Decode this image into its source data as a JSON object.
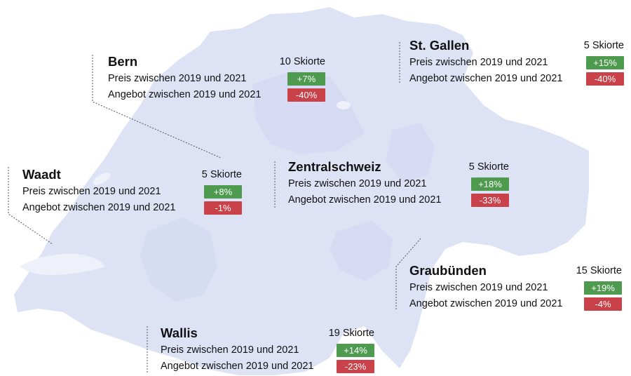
{
  "colors": {
    "positive": "#4e9a4e",
    "negative": "#c9424a",
    "map_fill": "#dde2f5"
  },
  "regions": [
    {
      "name": "Bern",
      "count": "10 Skiorte",
      "price_label": "Preis zwischen 2019 und 2021",
      "price_change": "+7%",
      "supply_label": "Angebot zwischen 2019 und 2021",
      "supply_change": "-40%"
    },
    {
      "name": "St. Gallen",
      "count": "5 Skiorte",
      "price_label": "Preis zwischen 2019 und 2021",
      "price_change": "+15%",
      "supply_label": "Angebot zwischen 2019 und 2021",
      "supply_change": "-40%"
    },
    {
      "name": "Waadt",
      "count": "5 Skiorte",
      "price_label": "Preis zwischen 2019 und 2021",
      "price_change": "+8%",
      "supply_label": "Angebot zwischen 2019 und 2021",
      "supply_change": "-1%"
    },
    {
      "name": "Zentralschweiz",
      "count": "5 Skiorte",
      "price_label": "Preis zwischen 2019 und 2021",
      "price_change": "+18%",
      "supply_label": "Angebot zwischen 2019 und 2021",
      "supply_change": "-33%"
    },
    {
      "name": "Graubünden",
      "count": "15 Skiorte",
      "price_label": "Preis zwischen 2019 und 2021",
      "price_change": "+19%",
      "supply_label": "Angebot zwischen 2019 und 2021",
      "supply_change": "-4%"
    },
    {
      "name": "Wallis",
      "count": "19 Skiorte",
      "price_label": "Preis zwischen 2019 und 2021",
      "price_change": "+14%",
      "supply_label": "Angebot zwischen 2019 und 2021",
      "supply_change": "-23%"
    }
  ]
}
